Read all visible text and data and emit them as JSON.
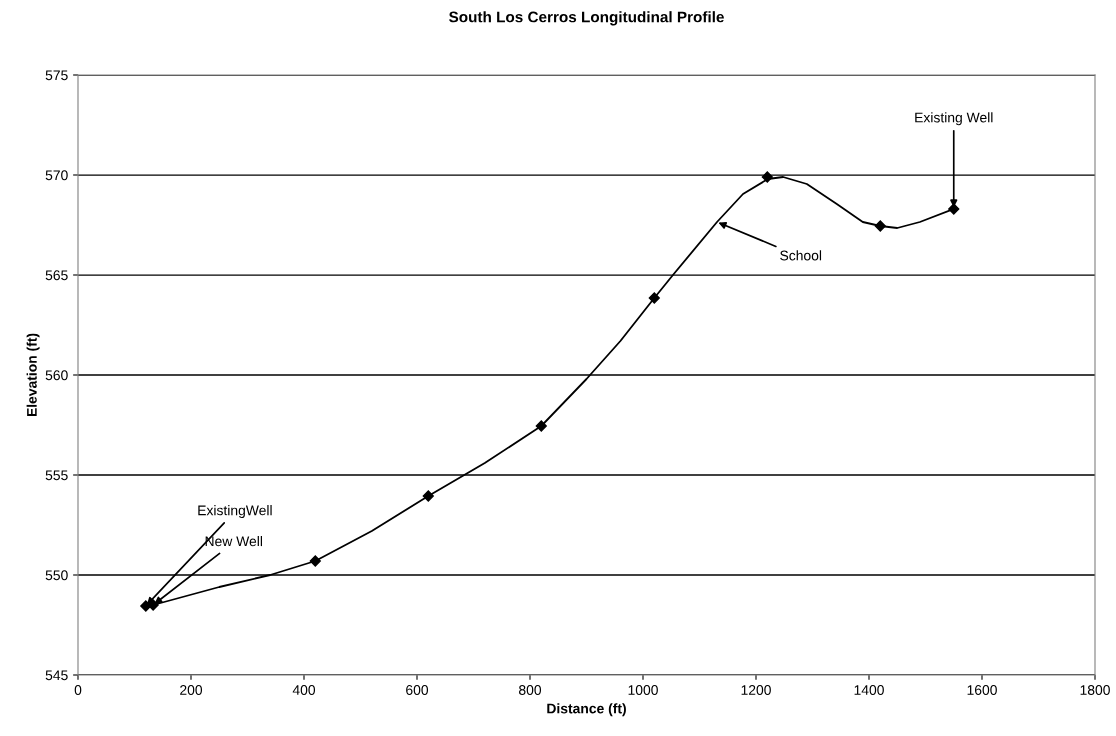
{
  "chart_data": {
    "type": "scatter",
    "title": "South Los Cerros Longitudinal Profile",
    "xlabel": "Distance (ft)",
    "ylabel": "Elevation (ft)",
    "series": [
      {
        "type": "line",
        "marker": "none",
        "color": "#000000",
        "x": [
          120,
          133,
          250,
          340,
          420,
          520,
          620,
          720,
          820,
          900,
          960,
          1020,
          1053,
          1131,
          1177,
          1221,
          1248,
          1290,
          1343,
          1389,
          1420,
          1450,
          1490,
          1550
        ],
        "values": [
          548.45,
          548.5,
          549.4,
          550.0,
          550.7,
          552.2,
          553.95,
          555.6,
          557.45,
          559.8,
          561.7,
          563.85,
          565.0,
          567.65,
          569.05,
          569.8,
          569.9,
          569.55,
          568.55,
          567.65,
          567.45,
          567.35,
          567.65,
          568.3
        ]
      },
      {
        "marker": "diamond",
        "color": "#000000",
        "x": [
          120,
          133,
          420,
          620,
          820,
          1020,
          1220,
          1420,
          1550
        ],
        "values": [
          548.45,
          548.5,
          550.7,
          553.95,
          557.45,
          563.85,
          569.9,
          567.45,
          568.3
        ]
      }
    ],
    "xlim": [
      0,
      1800
    ],
    "xticks": [
      0,
      200,
      400,
      600,
      800,
      1000,
      1200,
      1400,
      1600,
      1800
    ],
    "ylim": [
      545,
      575
    ],
    "yticks": [
      545,
      550,
      555,
      560,
      565,
      570,
      575
    ],
    "grid": "y",
    "line_style": "solid",
    "legend": false,
    "annotations": [
      {
        "text": "ExistingWell",
        "x": 120,
        "y": 548.45
      },
      {
        "text": "New Well",
        "x": 133,
        "y": 548.5
      },
      {
        "text": "School",
        "x": 1131,
        "y": 567.65
      },
      {
        "text": "Existing Well",
        "x": 1550,
        "y": 568.3
      }
    ]
  }
}
